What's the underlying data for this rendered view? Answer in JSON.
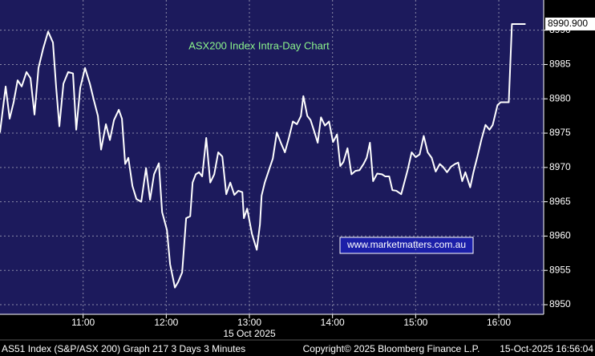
{
  "chart_data": {
    "type": "line",
    "title": "ASX200 Index Intra-Day Chart",
    "watermark": "www.marketmatters.com.au",
    "date_label": "15 Oct 2025",
    "price_label": "8990.900",
    "footer_left": "AS51 Index (S&P/ASX 200) Graph 217 3 Days 3 Minutes",
    "footer_center": "Copyright© 2025 Bloomberg Finance L.P.",
    "footer_right": "15-Oct-2025 16:56:04",
    "color": "#ffffff",
    "background": "#1c1a5c",
    "grid": true,
    "xlim": [
      10,
      16.54
    ],
    "xticks": [
      {
        "value": 11,
        "label": "11:00"
      },
      {
        "value": 12,
        "label": "12:00"
      },
      {
        "value": 13,
        "label": "13:00"
      },
      {
        "value": 14,
        "label": "14:00"
      },
      {
        "value": 15,
        "label": "15:00"
      },
      {
        "value": 16,
        "label": "16:00"
      }
    ],
    "ylim": [
      8948.6,
      8994.4
    ],
    "yticks": [
      8950,
      8955,
      8960,
      8965,
      8970,
      8975,
      8980,
      8985,
      8990
    ],
    "x": [
      10.0,
      10.068,
      10.116,
      10.164,
      10.212,
      10.261,
      10.319,
      10.367,
      10.415,
      10.463,
      10.521,
      10.579,
      10.637,
      10.676,
      10.714,
      10.763,
      10.82,
      10.878,
      10.917,
      10.965,
      11.023,
      11.081,
      11.129,
      11.178,
      11.216,
      11.274,
      11.322,
      11.371,
      11.429,
      11.467,
      11.506,
      11.544,
      11.593,
      11.641,
      11.699,
      11.757,
      11.805,
      11.853,
      11.911,
      11.95,
      12.008,
      12.046,
      12.104,
      12.143,
      12.191,
      12.239,
      12.288,
      12.317,
      12.355,
      12.394,
      12.432,
      12.481,
      12.529,
      12.577,
      12.625,
      12.674,
      12.722,
      12.77,
      12.819,
      12.867,
      12.915,
      12.934,
      12.973,
      13.031,
      13.089,
      13.127,
      13.147,
      13.185,
      13.243,
      13.282,
      13.33,
      13.378,
      13.427,
      13.475,
      13.523,
      13.571,
      13.62,
      13.649,
      13.697,
      13.736,
      13.784,
      13.822,
      13.861,
      13.909,
      13.958,
      14.006,
      14.054,
      14.093,
      14.131,
      14.18,
      14.228,
      14.276,
      14.324,
      14.373,
      14.411,
      14.45,
      14.488,
      14.537,
      14.595,
      14.633,
      14.682,
      14.72,
      14.768,
      14.826,
      14.903,
      14.952,
      15.0,
      15.048,
      15.097,
      15.145,
      15.193,
      15.241,
      15.29,
      15.328,
      15.377,
      15.425,
      15.473,
      15.512,
      15.56,
      15.598,
      15.656,
      15.695,
      15.743,
      15.792,
      15.84,
      15.888,
      15.927,
      15.985,
      16.023,
      16.081,
      16.12,
      16.158,
      16.245,
      16.322
    ],
    "values": [
      8975.1,
      8981.8,
      8977.1,
      8979.5,
      8982.7,
      8981.8,
      8983.9,
      8983.0,
      8977.7,
      8984.5,
      8987.4,
      8989.8,
      8988.2,
      8981.6,
      8976.0,
      8982.2,
      8983.9,
      8983.7,
      8975.5,
      8981.6,
      8984.5,
      8982.2,
      8979.8,
      8977.5,
      8972.6,
      8976.3,
      8974.0,
      8976.9,
      8978.4,
      8977.1,
      8970.5,
      8971.4,
      8967.3,
      8965.4,
      8965.0,
      8969.9,
      8965.3,
      8969.0,
      8970.6,
      8963.5,
      8960.9,
      8955.9,
      8952.5,
      8953.3,
      8954.7,
      8962.6,
      8962.9,
      8967.8,
      8969.0,
      8969.3,
      8968.7,
      8974.3,
      8967.8,
      8969.0,
      8972.2,
      8971.6,
      8966.1,
      8967.8,
      8966.0,
      8966.6,
      8966.4,
      8962.6,
      8964.0,
      8960.3,
      8958.0,
      8961.7,
      8965.9,
      8967.8,
      8969.9,
      8971.3,
      8975.1,
      8973.6,
      8972.2,
      8974.3,
      8976.7,
      8976.3,
      8977.5,
      8980.4,
      8977.5,
      8976.9,
      8975.1,
      8973.6,
      8977.3,
      8976.1,
      8976.7,
      8973.7,
      8974.8,
      8970.2,
      8970.8,
      8972.8,
      8969.0,
      8969.5,
      8969.6,
      8970.5,
      8971.4,
      8973.6,
      8968.0,
      8969.1,
      8969.0,
      8968.7,
      8968.7,
      8966.7,
      8966.6,
      8966.1,
      8969.6,
      8972.2,
      8971.5,
      8971.9,
      8974.6,
      8972.2,
      8971.4,
      8969.4,
      8970.5,
      8970.1,
      8969.3,
      8970.1,
      8970.5,
      8970.7,
      8968.0,
      8969.3,
      8967.1,
      8969.3,
      8971.6,
      8974.1,
      8976.2,
      8975.5,
      8976.2,
      8979.1,
      8979.5,
      8979.5,
      8979.5,
      8990.9,
      8990.9,
      8990.9
    ]
  }
}
